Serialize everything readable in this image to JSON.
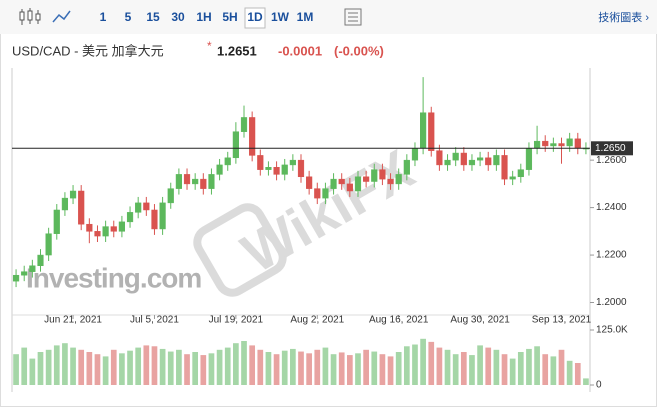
{
  "toolbar": {
    "intervals": [
      "1",
      "5",
      "15",
      "30",
      "1H",
      "5H",
      "1D",
      "1W",
      "1M"
    ],
    "active": "1D",
    "link": "技術圖表 ›"
  },
  "header": {
    "title": "USD/CAD - 美元 加拿大元",
    "price": "1.2651",
    "change": "-0.0001",
    "change_pct": "(-0.00%)"
  },
  "watermarks": [
    "Investing.com",
    "WikiFX"
  ],
  "chart_data": {
    "type": "candlestick",
    "categories": [
      null,
      null,
      null,
      null,
      null,
      null,
      null,
      "Jun 21, 2021",
      null,
      null,
      null,
      null,
      null,
      null,
      null,
      null,
      null,
      "Jul 5, 2021",
      null,
      null,
      null,
      null,
      null,
      null,
      null,
      null,
      null,
      "Jul 19, 2021",
      null,
      null,
      null,
      null,
      null,
      null,
      null,
      null,
      null,
      "Aug 2, 2021",
      null,
      null,
      null,
      null,
      null,
      null,
      null,
      null,
      null,
      "Aug 16, 2021",
      null,
      null,
      null,
      null,
      null,
      null,
      null,
      null,
      null,
      "Aug 30, 2021",
      null,
      null,
      null,
      null,
      null,
      null,
      null,
      null,
      null,
      "Sep 13, 2021",
      null,
      null,
      null
    ],
    "open": [
      1.209,
      1.2115,
      1.213,
      1.2155,
      1.22,
      1.229,
      1.239,
      1.244,
      1.247,
      1.233,
      1.23,
      1.228,
      1.232,
      1.23,
      1.234,
      1.238,
      1.242,
      1.239,
      1.231,
      1.242,
      1.248,
      1.254,
      1.25,
      1.252,
      1.248,
      1.254,
      1.258,
      1.261,
      1.272,
      1.278,
      1.262,
      1.256,
      1.257,
      1.254,
      1.258,
      1.26,
      1.253,
      1.248,
      1.244,
      1.248,
      1.252,
      1.25,
      1.247,
      1.253,
      1.251,
      1.256,
      1.252,
      1.25,
      1.254,
      1.26,
      1.265,
      1.28,
      1.264,
      1.258,
      1.26,
      1.263,
      1.258,
      1.26,
      1.261,
      1.258,
      1.262,
      1.252,
      1.253,
      1.256,
      1.265,
      1.268,
      1.266,
      1.267,
      1.266,
      1.269,
      1.265
    ],
    "high": [
      1.214,
      1.2155,
      1.218,
      1.2225,
      1.2315,
      1.2415,
      1.2465,
      1.2495,
      1.2495,
      1.2355,
      1.2325,
      1.2345,
      1.2345,
      1.2365,
      1.2405,
      1.2445,
      1.2445,
      1.2415,
      1.2445,
      1.2505,
      1.2565,
      1.2565,
      1.2545,
      1.2545,
      1.2565,
      1.2605,
      1.2635,
      1.276,
      1.283,
      1.2805,
      1.2645,
      1.2595,
      1.2595,
      1.2605,
      1.2625,
      1.2625,
      1.2555,
      1.2505,
      1.2505,
      1.2545,
      1.2545,
      1.2525,
      1.2555,
      1.2555,
      1.2585,
      1.2585,
      1.2545,
      1.2565,
      1.2625,
      1.2675,
      1.295,
      1.2825,
      1.2665,
      1.2625,
      1.2655,
      1.2655,
      1.2625,
      1.2635,
      1.2635,
      1.2645,
      1.2645,
      1.2555,
      1.2585,
      1.2675,
      1.2745,
      1.2705,
      1.2695,
      1.2695,
      1.2715,
      1.2715,
      1.2675
    ],
    "low": [
      1.2065,
      1.209,
      1.2105,
      1.213,
      1.2175,
      1.2265,
      1.2365,
      1.2415,
      1.2305,
      1.225,
      1.2255,
      1.2255,
      1.2275,
      1.2275,
      1.2315,
      1.2355,
      1.2365,
      1.2285,
      1.2285,
      1.2395,
      1.2455,
      1.2475,
      1.2475,
      1.2455,
      1.2455,
      1.2515,
      1.2555,
      1.2585,
      1.2695,
      1.2595,
      1.2535,
      1.2535,
      1.2515,
      1.2515,
      1.2555,
      1.2505,
      1.2455,
      1.2415,
      1.2415,
      1.2455,
      1.2475,
      1.2445,
      1.2445,
      1.2485,
      1.2485,
      1.2495,
      1.2475,
      1.2475,
      1.2515,
      1.2575,
      1.2625,
      1.2615,
      1.2555,
      1.2555,
      1.2575,
      1.2555,
      1.2555,
      1.2575,
      1.2555,
      1.2555,
      1.2495,
      1.2495,
      1.2505,
      1.2535,
      1.2625,
      1.2635,
      1.2635,
      1.2585,
      1.2635,
      1.2625,
      1.2625
    ],
    "close": [
      1.2115,
      1.213,
      1.2155,
      1.22,
      1.229,
      1.239,
      1.244,
      1.247,
      1.233,
      1.23,
      1.228,
      1.232,
      1.23,
      1.234,
      1.238,
      1.242,
      1.239,
      1.231,
      1.242,
      1.248,
      1.254,
      1.25,
      1.252,
      1.248,
      1.254,
      1.258,
      1.261,
      1.272,
      1.278,
      1.262,
      1.256,
      1.257,
      1.254,
      1.258,
      1.26,
      1.253,
      1.248,
      1.244,
      1.248,
      1.252,
      1.25,
      1.247,
      1.253,
      1.251,
      1.256,
      1.252,
      1.25,
      1.254,
      1.26,
      1.265,
      1.28,
      1.264,
      1.258,
      1.26,
      1.263,
      1.258,
      1.26,
      1.261,
      1.258,
      1.262,
      1.252,
      1.253,
      1.256,
      1.265,
      1.268,
      1.266,
      1.267,
      1.266,
      1.269,
      1.265,
      1.2651
    ],
    "volume": [
      70000,
      85000,
      60000,
      75000,
      80000,
      90000,
      95000,
      85000,
      80000,
      75000,
      70000,
      65000,
      80000,
      72000,
      78000,
      85000,
      90000,
      88000,
      82000,
      76000,
      80000,
      70000,
      75000,
      68000,
      72000,
      80000,
      85000,
      95000,
      100000,
      90000,
      80000,
      75000,
      70000,
      78000,
      82000,
      76000,
      72000,
      80000,
      85000,
      70000,
      74000,
      68000,
      72000,
      80000,
      76000,
      70000,
      65000,
      75000,
      88000,
      92000,
      105000,
      98000,
      85000,
      80000,
      70000,
      75000,
      68000,
      90000,
      85000,
      80000,
      70000,
      60000,
      75000,
      82000,
      88000,
      70000,
      65000,
      80000,
      55000,
      50000,
      15000
    ],
    "ylim": [
      1.196,
      1.298
    ],
    "yticks": [
      {
        "value": 1.2,
        "label": "1.2000"
      },
      {
        "value": 1.22,
        "label": "1.2200"
      },
      {
        "value": 1.24,
        "label": "1.2400"
      },
      {
        "value": 1.26,
        "label": "1.2600"
      }
    ],
    "last_price": {
      "value": 1.265,
      "label": "1.2650"
    },
    "vlim": [
      0,
      125000
    ],
    "vticks": [
      0,
      {
        "value": 125000,
        "label": "125.0K"
      }
    ],
    "up_color": "#5cb85c",
    "down_color": "#d9534f",
    "volume_up_color": "#a5d6a7",
    "volume_down_color": "#e8a3a1"
  }
}
